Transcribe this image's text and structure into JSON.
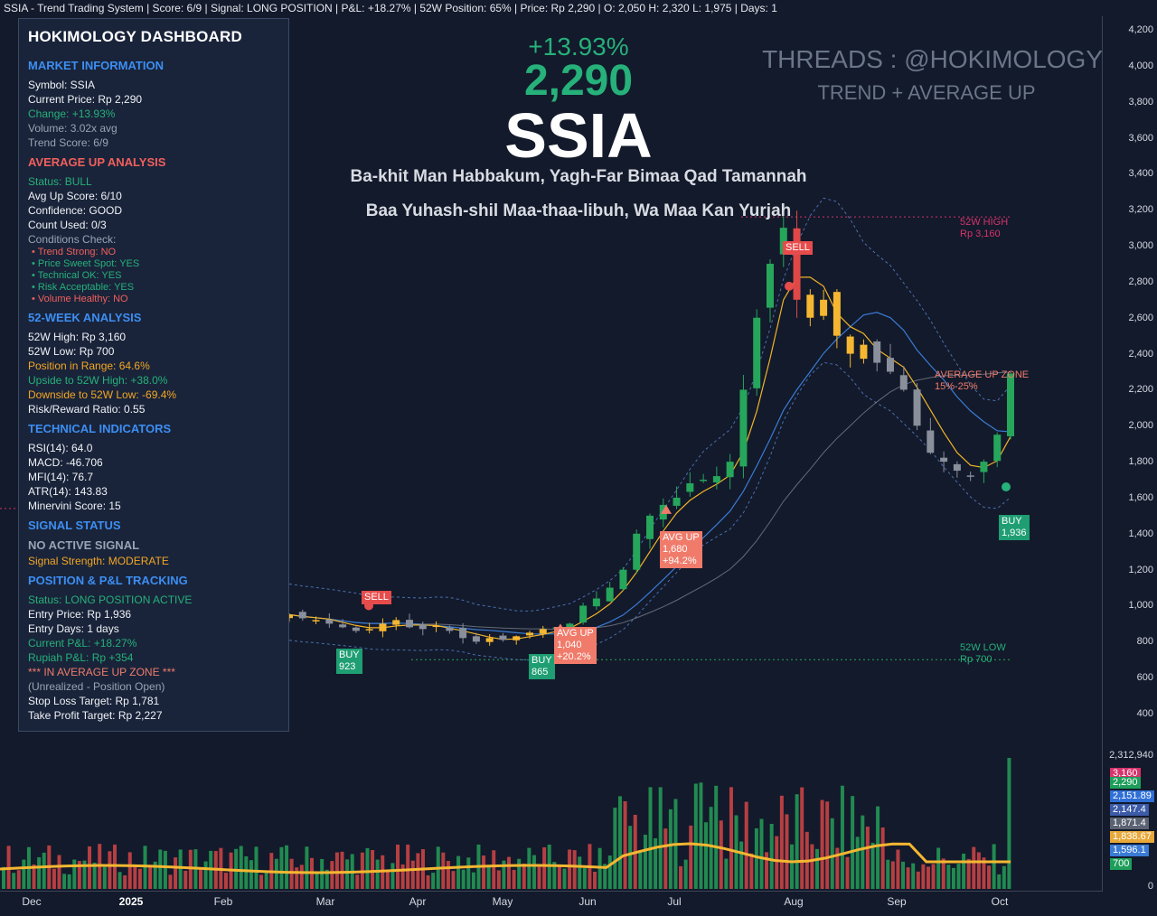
{
  "window": {
    "status_text": "SSIA - Trend Trading System | Score: 6/9 | Signal: LONG POSITION | P&L: +18.27% | 52W Position: 65% | Price: Rp 2,290 | O: 2,050 H: 2,320 L: 1,975 | Days: 1"
  },
  "headline": {
    "change_pct": "+13.93%",
    "price": "2,290",
    "symbol": "SSIA",
    "tagline_1": "Ba-khit Man Habbakum, Yagh-Far Bimaa Qad Tamannah",
    "tagline_2": "Baa Yuhash-shil Maa-thaa-libuh, Wa Maa Kan Yurjah",
    "threads": "THREADS : @HOKIMOLOGY",
    "strategy": "TREND + AVERAGE UP"
  },
  "dashboard": {
    "title": "HOKIMOLOGY DASHBOARD",
    "market": {
      "heading": "MARKET INFORMATION",
      "symbol": "Symbol: SSIA",
      "price": "Current Price: Rp 2,290",
      "change": "Change: +13.93%",
      "volume": "Volume: 3.02x avg",
      "trend_score": "Trend Score: 6/9"
    },
    "avg_up": {
      "heading": "AVERAGE UP ANALYSIS",
      "status": "Status: BULL",
      "score": "Avg Up Score: 6/10",
      "confidence": "Confidence: GOOD",
      "count": "Count Used: 0/3",
      "conditions": "Conditions Check:",
      "c1": "• Trend Strong: NO",
      "c2": "• Price Sweet Spot: YES",
      "c3": "• Technical OK: YES",
      "c4": "• Risk Acceptable: YES",
      "c5": "• Volume Healthy: NO"
    },
    "week52": {
      "heading": "52-WEEK ANALYSIS",
      "high": "52W High: Rp 3,160",
      "low": "52W Low: Rp 700",
      "position": "Position in Range: 64.6%",
      "upside": "Upside to 52W High: +38.0%",
      "downside": "Downside to 52W Low: -69.4%",
      "rr": "Risk/Reward Ratio: 0.55"
    },
    "technical": {
      "heading": "TECHNICAL INDICATORS",
      "rsi": "RSI(14): 64.0",
      "macd": "MACD: -46.706",
      "mfi": "MFI(14): 76.7",
      "atr": "ATR(14): 143.83",
      "minervini": "Minervini Score: 15"
    },
    "signal": {
      "heading": "SIGNAL STATUS",
      "state": "NO ACTIVE SIGNAL",
      "strength": "Signal Strength: MODERATE"
    },
    "position": {
      "heading": "POSITION & P&L TRACKING",
      "status": "Status: LONG POSITION ACTIVE",
      "entry_price": "Entry Price: Rp 1,936",
      "entry_days": "Entry Days: 1 days",
      "current_pl": "Current P&L: +18.27%",
      "rupiah_pl": "Rupiah P&L: Rp +354",
      "zone": "*** IN AVERAGE UP ZONE ***",
      "unrealized": "(Unrealized - Position Open)",
      "stop_loss": "Stop Loss Target: Rp 1,781",
      "take_profit": "Take Profit Target: Rp 2,227"
    }
  },
  "annotations": {
    "high52_line1": "52W HIGH",
    "high52_line2": "Rp 3,160",
    "low52_line1": "52W LOW",
    "low52_line2": "Rp 700",
    "avgup_zone_line1": "AVERAGE UP ZONE",
    "avgup_zone_line2": "15%-25%",
    "sell_1": "SELL",
    "sell_2": "SELL",
    "buy_1_label": "BUY",
    "buy_1_price": "923",
    "buy_2_label": "BUY",
    "buy_2_price": "865",
    "buy_3_label": "BUY",
    "buy_3_price": "1,936",
    "avgup_1_label": "AVG UP",
    "avgup_1_price": "1,040",
    "avgup_1_pct": "+20.2%",
    "avgup_2_label": "AVG UP",
    "avgup_2_price": "1,680",
    "avgup_2_pct": "+94.2%"
  },
  "axis": {
    "price_ticks": [
      "4,200",
      "4,000",
      "3,800",
      "3,600",
      "3,400",
      "3,200",
      "3,000",
      "2,800",
      "2,600",
      "2,400",
      "2,200",
      "2,000",
      "1,800",
      "1,600",
      "1,400",
      "1,200",
      "1,000",
      "800",
      "600",
      "400"
    ],
    "volume_max": "2,312,940",
    "volume_zero": "0",
    "months": [
      "Dec",
      "2025",
      "Feb",
      "Mar",
      "Apr",
      "May",
      "Jun",
      "Jul",
      "Aug",
      "Sep",
      "Oct"
    ],
    "tags": [
      {
        "text": "3,160",
        "color": "#d6336c"
      },
      {
        "text": "2,290",
        "color": "#1e9e5a"
      },
      {
        "text": "2,151.89",
        "color": "#2f6fd6"
      },
      {
        "text": "2,147.4",
        "color": "#3b5aa8"
      },
      {
        "text": "1,871.4",
        "color": "#5b6272"
      },
      {
        "text": "1,838.67",
        "color": "#e8a83a"
      },
      {
        "text": "1,596.1",
        "color": "#3a7bd5"
      },
      {
        "text": "700",
        "color": "#1e9e5a"
      }
    ]
  },
  "colors": {
    "background": "#131a2b",
    "up": "#26a65b",
    "down": "#e04848",
    "neutral_candle": "#8a8f9c",
    "avg_up_candle": "#f5b731",
    "ma_fast": "#f0b429",
    "ma_mid": "#3a7bd5",
    "ma_slow": "#9aa0ab",
    "high_line": "#d6336c",
    "low_line": "#26a65b"
  },
  "chart_data": {
    "type": "candlestick",
    "months": [
      "Dec",
      "2025",
      "Feb",
      "Mar",
      "Apr",
      "May",
      "Jun",
      "Jul",
      "Aug",
      "Sep",
      "Oct"
    ],
    "price_range": [
      300,
      4300
    ],
    "high_52w": 3160,
    "low_52w": 700,
    "last": {
      "open": 2050,
      "high": 2320,
      "low": 1975,
      "close": 2290
    },
    "close_path": [
      950,
      930,
      920,
      900,
      880,
      860,
      870,
      900,
      920,
      880,
      870,
      890,
      860,
      820,
      800,
      820,
      810,
      830,
      850,
      870,
      880,
      900,
      1000,
      1040,
      1100,
      1200,
      1400,
      1500,
      1560,
      1600,
      1680,
      1700,
      1720,
      1800,
      2200,
      2600,
      2900,
      3100,
      2700,
      2600,
      2700,
      2500,
      2400,
      2450,
      2350,
      2300,
      2200,
      2000,
      1850,
      1800,
      1750,
      1720,
      1800,
      1950,
      2290
    ]
  }
}
